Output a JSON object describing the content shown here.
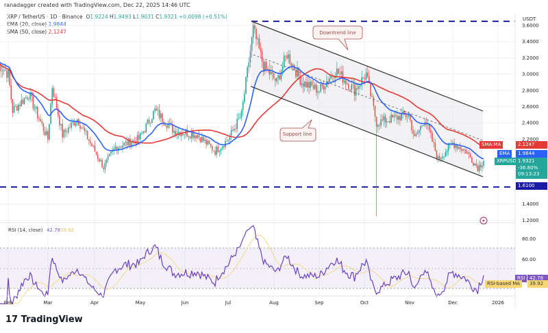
{
  "header": {
    "credit": "ranadagger created with TradingView.com, Dec 22, 2025 14:46 UTC",
    "symbol": "XRP / TetherUS · 1D · Binance",
    "ohlc": {
      "o_label": "O",
      "o": "1.9224",
      "h_label": "H",
      "h": "1.9493",
      "l_label": "L",
      "l": "1.9031",
      "c_label": "C",
      "c": "1.9321",
      "change": "+0.0098 (+0.51%)"
    },
    "ema_label": "EMA (20, close)",
    "ema_value": "1.9844",
    "sma_label": "SMA (50, close)",
    "sma_value": "2.1247"
  },
  "price_axis": {
    "currency": "USDT",
    "ticks": [
      "3.6000",
      "3.4000",
      "3.2000",
      "3.0000",
      "2.8000",
      "2.6000",
      "2.4000",
      "2.2000",
      "1.4000",
      "1.2000"
    ],
    "tag_sma_label": "SMA:MA",
    "tag_sma_value": "2.1247",
    "tag_ema_label": "EMA",
    "tag_ema_value": "1.9844",
    "tag_price_label": "XRPUSDT",
    "tag_price_value": "1.9321",
    "tag_price_change": "-36.80%",
    "tag_countdown": "09:13:23",
    "tag_level_value": "1.6100"
  },
  "annotations": {
    "downtrend": "Downtrend line",
    "support": "Support line"
  },
  "horizontal_levels": [
    3.65,
    1.61
  ],
  "rsi": {
    "label": "RSI (14, close)",
    "value": "42.78",
    "ma_value": "39.92",
    "ticks": [
      "80.00",
      "60.00"
    ],
    "tag_rsi_label": "RSI",
    "tag_rsi_value": "42.78",
    "tag_ma_label": "RSI-based MA",
    "tag_ma_value": "39.92"
  },
  "time_axis": [
    "Feb",
    "Mar",
    "Apr",
    "May",
    "Jun",
    "Jul",
    "Aug",
    "Sep",
    "Oct",
    "Nov",
    "Dec",
    "2026"
  ],
  "brand": "TradingView",
  "colors": {
    "up": "#26a69a",
    "down": "#ef5350",
    "ema": "#2962ff",
    "sma": "#e53935",
    "level": "#1a1aa6",
    "rsi": "#7e57c2",
    "rsi_ma": "#f2d98a"
  },
  "chart_data": {
    "type": "candlestick",
    "symbol": "XRPUSDT",
    "ylim": [
      1.1,
      3.7
    ],
    "anchor_closes": [
      [
        "2025-01-24",
        3.15
      ],
      [
        "2025-02-01",
        3.0
      ],
      [
        "2025-02-04",
        2.55
      ],
      [
        "2025-02-15",
        2.75
      ],
      [
        "2025-02-28",
        2.2
      ],
      [
        "2025-03-03",
        2.85
      ],
      [
        "2025-03-10",
        2.25
      ],
      [
        "2025-03-20",
        2.45
      ],
      [
        "2025-04-07",
        1.85
      ],
      [
        "2025-04-15",
        2.1
      ],
      [
        "2025-05-01",
        2.2
      ],
      [
        "2025-05-12",
        2.55
      ],
      [
        "2025-05-25",
        2.3
      ],
      [
        "2025-06-10",
        2.25
      ],
      [
        "2025-06-22",
        2.05
      ],
      [
        "2025-07-01",
        2.2
      ],
      [
        "2025-07-10",
        2.5
      ],
      [
        "2025-07-18",
        3.55
      ],
      [
        "2025-07-25",
        3.1
      ],
      [
        "2025-08-03",
        2.9
      ],
      [
        "2025-08-10",
        3.25
      ],
      [
        "2025-08-20",
        2.9
      ],
      [
        "2025-09-01",
        2.8
      ],
      [
        "2025-09-12",
        3.05
      ],
      [
        "2025-09-25",
        2.8
      ],
      [
        "2025-10-03",
        3.0
      ],
      [
        "2025-10-10",
        2.4
      ],
      [
        "2025-10-20",
        2.45
      ],
      [
        "2025-11-01",
        2.5
      ],
      [
        "2025-11-05",
        2.2
      ],
      [
        "2025-11-12",
        2.45
      ],
      [
        "2025-11-21",
        1.95
      ],
      [
        "2025-12-01",
        2.15
      ],
      [
        "2025-12-10",
        2.05
      ],
      [
        "2025-12-18",
        1.85
      ],
      [
        "2025-12-22",
        1.93
      ]
    ]
  }
}
